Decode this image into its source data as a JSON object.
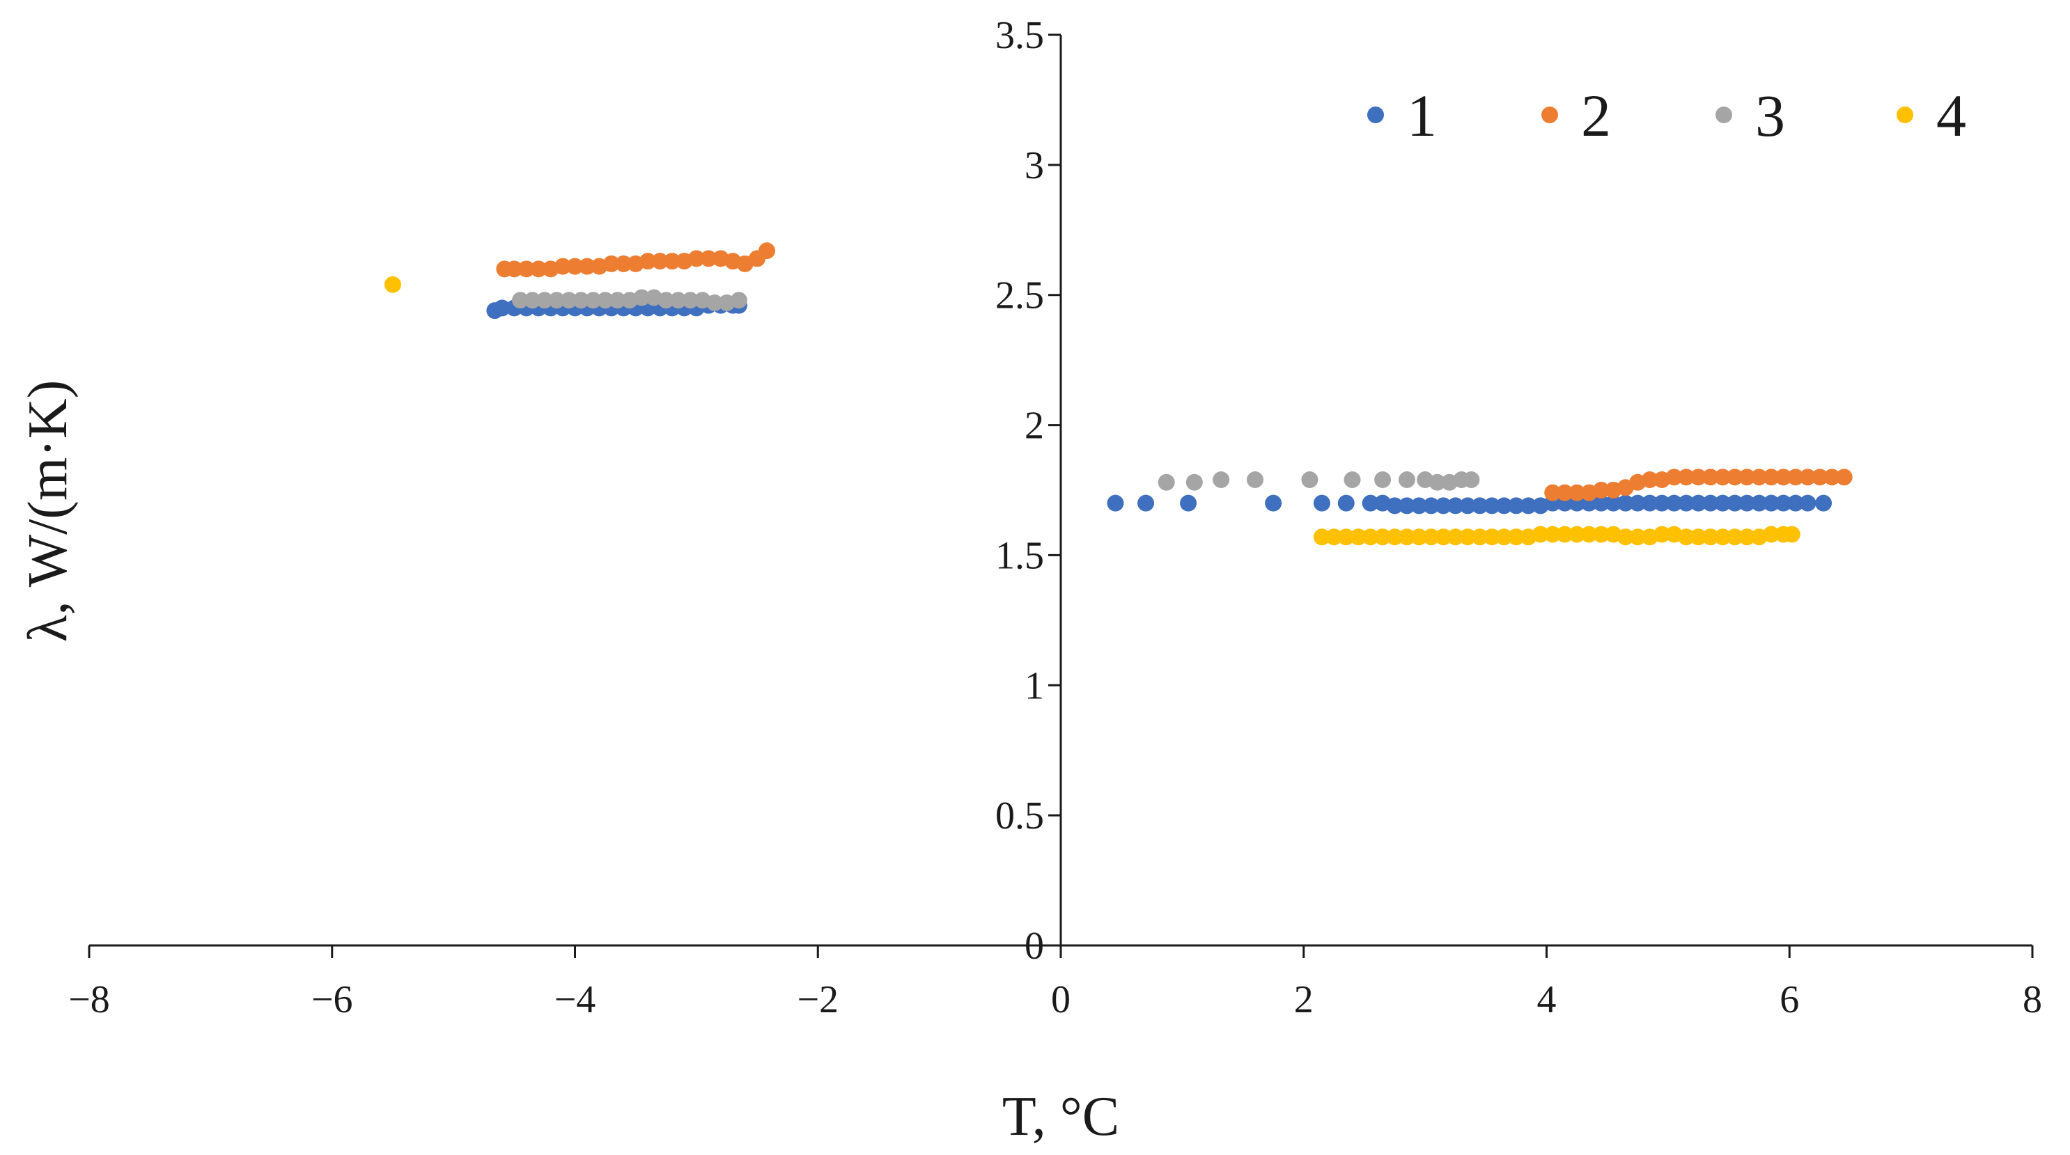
{
  "chart_data": {
    "type": "scatter",
    "title": "",
    "xlabel": "T, °C",
    "ylabel": "λ, W/(m·K)",
    "xlim": [
      -8,
      8
    ],
    "ylim": [
      0,
      3.5
    ],
    "x_ticks": [
      "−8",
      "−6",
      "−4",
      "−2",
      "0",
      "2",
      "4",
      "6",
      "8"
    ],
    "y_ticks": [
      "0",
      "0.5",
      "1",
      "1.5",
      "2",
      "2.5",
      "3",
      "3.5"
    ],
    "grid": false,
    "legend_position": "top-right",
    "series": [
      {
        "name": "1",
        "color": "#3f6fbf",
        "points": [
          [
            -4.66,
            2.44
          ],
          [
            -4.6,
            2.45
          ],
          [
            -4.5,
            2.45
          ],
          [
            -4.4,
            2.45
          ],
          [
            -4.3,
            2.45
          ],
          [
            -4.2,
            2.45
          ],
          [
            -4.1,
            2.45
          ],
          [
            -4.0,
            2.45
          ],
          [
            -3.9,
            2.45
          ],
          [
            -3.8,
            2.45
          ],
          [
            -3.7,
            2.45
          ],
          [
            -3.6,
            2.45
          ],
          [
            -3.5,
            2.45
          ],
          [
            -3.4,
            2.45
          ],
          [
            -3.3,
            2.45
          ],
          [
            -3.2,
            2.45
          ],
          [
            -3.1,
            2.45
          ],
          [
            -3.0,
            2.45
          ],
          [
            -2.9,
            2.46
          ],
          [
            -2.8,
            2.46
          ],
          [
            -2.7,
            2.46
          ],
          [
            -2.65,
            2.46
          ],
          [
            0.45,
            1.7
          ],
          [
            0.7,
            1.7
          ],
          [
            1.05,
            1.7
          ],
          [
            1.75,
            1.7
          ],
          [
            2.15,
            1.7
          ],
          [
            2.35,
            1.7
          ],
          [
            2.55,
            1.7
          ],
          [
            2.65,
            1.7
          ],
          [
            2.75,
            1.69
          ],
          [
            2.85,
            1.69
          ],
          [
            2.95,
            1.69
          ],
          [
            3.05,
            1.69
          ],
          [
            3.15,
            1.69
          ],
          [
            3.25,
            1.69
          ],
          [
            3.35,
            1.69
          ],
          [
            3.45,
            1.69
          ],
          [
            3.55,
            1.69
          ],
          [
            3.65,
            1.69
          ],
          [
            3.75,
            1.69
          ],
          [
            3.85,
            1.69
          ],
          [
            3.95,
            1.69
          ],
          [
            4.05,
            1.7
          ],
          [
            4.15,
            1.7
          ],
          [
            4.25,
            1.7
          ],
          [
            4.35,
            1.7
          ],
          [
            4.45,
            1.7
          ],
          [
            4.55,
            1.7
          ],
          [
            4.65,
            1.7
          ],
          [
            4.75,
            1.7
          ],
          [
            4.85,
            1.7
          ],
          [
            4.95,
            1.7
          ],
          [
            5.05,
            1.7
          ],
          [
            5.15,
            1.7
          ],
          [
            5.25,
            1.7
          ],
          [
            5.35,
            1.7
          ],
          [
            5.45,
            1.7
          ],
          [
            5.55,
            1.7
          ],
          [
            5.65,
            1.7
          ],
          [
            5.75,
            1.7
          ],
          [
            5.85,
            1.7
          ],
          [
            5.95,
            1.7
          ],
          [
            6.05,
            1.7
          ],
          [
            6.15,
            1.7
          ],
          [
            6.28,
            1.7
          ]
        ]
      },
      {
        "name": "2",
        "color": "#ed7d31",
        "points": [
          [
            -4.58,
            2.6
          ],
          [
            -4.5,
            2.6
          ],
          [
            -4.4,
            2.6
          ],
          [
            -4.3,
            2.6
          ],
          [
            -4.2,
            2.6
          ],
          [
            -4.1,
            2.61
          ],
          [
            -4.0,
            2.61
          ],
          [
            -3.9,
            2.61
          ],
          [
            -3.8,
            2.61
          ],
          [
            -3.7,
            2.62
          ],
          [
            -3.6,
            2.62
          ],
          [
            -3.5,
            2.62
          ],
          [
            -3.4,
            2.63
          ],
          [
            -3.3,
            2.63
          ],
          [
            -3.2,
            2.63
          ],
          [
            -3.1,
            2.63
          ],
          [
            -3.0,
            2.64
          ],
          [
            -2.9,
            2.64
          ],
          [
            -2.8,
            2.64
          ],
          [
            -2.7,
            2.63
          ],
          [
            -2.6,
            2.62
          ],
          [
            -2.5,
            2.64
          ],
          [
            -2.42,
            2.67
          ],
          [
            4.05,
            1.74
          ],
          [
            4.15,
            1.74
          ],
          [
            4.25,
            1.74
          ],
          [
            4.35,
            1.74
          ],
          [
            4.45,
            1.75
          ],
          [
            4.55,
            1.75
          ],
          [
            4.65,
            1.76
          ],
          [
            4.75,
            1.78
          ],
          [
            4.85,
            1.79
          ],
          [
            4.95,
            1.79
          ],
          [
            5.05,
            1.8
          ],
          [
            5.15,
            1.8
          ],
          [
            5.25,
            1.8
          ],
          [
            5.35,
            1.8
          ],
          [
            5.45,
            1.8
          ],
          [
            5.55,
            1.8
          ],
          [
            5.65,
            1.8
          ],
          [
            5.75,
            1.8
          ],
          [
            5.85,
            1.8
          ],
          [
            5.95,
            1.8
          ],
          [
            6.05,
            1.8
          ],
          [
            6.15,
            1.8
          ],
          [
            6.25,
            1.8
          ],
          [
            6.35,
            1.8
          ],
          [
            6.45,
            1.8
          ]
        ]
      },
      {
        "name": "3",
        "color": "#a5a5a5",
        "points": [
          [
            -4.45,
            2.48
          ],
          [
            -4.35,
            2.48
          ],
          [
            -4.25,
            2.48
          ],
          [
            -4.15,
            2.48
          ],
          [
            -4.05,
            2.48
          ],
          [
            -3.95,
            2.48
          ],
          [
            -3.85,
            2.48
          ],
          [
            -3.75,
            2.48
          ],
          [
            -3.65,
            2.48
          ],
          [
            -3.55,
            2.48
          ],
          [
            -3.45,
            2.49
          ],
          [
            -3.35,
            2.49
          ],
          [
            -3.25,
            2.48
          ],
          [
            -3.15,
            2.48
          ],
          [
            -3.05,
            2.48
          ],
          [
            -2.95,
            2.48
          ],
          [
            -2.85,
            2.47
          ],
          [
            -2.75,
            2.47
          ],
          [
            -2.65,
            2.48
          ],
          [
            0.87,
            1.78
          ],
          [
            1.1,
            1.78
          ],
          [
            1.32,
            1.79
          ],
          [
            1.6,
            1.79
          ],
          [
            2.05,
            1.79
          ],
          [
            2.4,
            1.79
          ],
          [
            2.65,
            1.79
          ],
          [
            2.85,
            1.79
          ],
          [
            3.0,
            1.79
          ],
          [
            3.1,
            1.78
          ],
          [
            3.2,
            1.78
          ],
          [
            3.3,
            1.79
          ],
          [
            3.38,
            1.79
          ]
        ]
      },
      {
        "name": "4",
        "color": "#ffc000",
        "points": [
          [
            -5.5,
            2.54
          ],
          [
            2.15,
            1.57
          ],
          [
            2.25,
            1.57
          ],
          [
            2.35,
            1.57
          ],
          [
            2.45,
            1.57
          ],
          [
            2.55,
            1.57
          ],
          [
            2.65,
            1.57
          ],
          [
            2.75,
            1.57
          ],
          [
            2.85,
            1.57
          ],
          [
            2.95,
            1.57
          ],
          [
            3.05,
            1.57
          ],
          [
            3.15,
            1.57
          ],
          [
            3.25,
            1.57
          ],
          [
            3.35,
            1.57
          ],
          [
            3.45,
            1.57
          ],
          [
            3.55,
            1.57
          ],
          [
            3.65,
            1.57
          ],
          [
            3.75,
            1.57
          ],
          [
            3.85,
            1.57
          ],
          [
            3.95,
            1.58
          ],
          [
            4.05,
            1.58
          ],
          [
            4.15,
            1.58
          ],
          [
            4.25,
            1.58
          ],
          [
            4.35,
            1.58
          ],
          [
            4.45,
            1.58
          ],
          [
            4.55,
            1.58
          ],
          [
            4.65,
            1.57
          ],
          [
            4.75,
            1.57
          ],
          [
            4.85,
            1.57
          ],
          [
            4.95,
            1.58
          ],
          [
            5.05,
            1.58
          ],
          [
            5.15,
            1.57
          ],
          [
            5.25,
            1.57
          ],
          [
            5.35,
            1.57
          ],
          [
            5.45,
            1.57
          ],
          [
            5.55,
            1.57
          ],
          [
            5.65,
            1.57
          ],
          [
            5.75,
            1.57
          ],
          [
            5.85,
            1.58
          ],
          [
            5.95,
            1.58
          ],
          [
            6.02,
            1.58
          ]
        ]
      }
    ]
  }
}
